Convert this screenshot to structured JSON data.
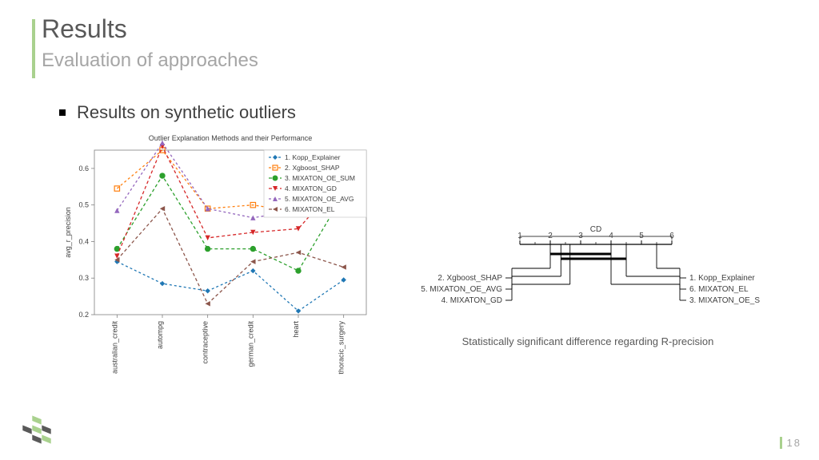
{
  "header": {
    "title": "Results",
    "subtitle": "Evaluation of approaches"
  },
  "bullet": "Results on synthetic outliers",
  "page_number": "18",
  "chart": {
    "type": "line",
    "title": "Outlier Explanation Methods and their Performance",
    "ylabel": "avg_r_precision",
    "x_categories": [
      "australian_credit",
      "autompg",
      "contraceptive",
      "german_credit",
      "heart",
      "thoracic_surgery"
    ],
    "ylim": [
      0.2,
      0.65
    ],
    "yticks": [
      0.2,
      0.3,
      0.4,
      0.5,
      0.6
    ],
    "background_color": "#ffffff",
    "axes_color": "#808080",
    "label_fontsize": 9,
    "title_fontsize": 9,
    "series": [
      {
        "name": "1. Kopp_Explainer",
        "color": "#1f77b4",
        "marker": "diamond",
        "dash": "3,3",
        "values": [
          0.345,
          0.285,
          0.265,
          0.32,
          0.21,
          0.295
        ]
      },
      {
        "name": "2. Xgboost_SHAP",
        "color": "#ff7f0e",
        "marker": "square",
        "dash": "3,3",
        "values": [
          0.545,
          0.65,
          0.49,
          0.5,
          0.48,
          0.52
        ]
      },
      {
        "name": "3. MIXATON_OE_SUM",
        "color": "#2ca02c",
        "marker": "circle",
        "dash": "4,3",
        "values": [
          0.38,
          0.58,
          0.38,
          0.38,
          0.32,
          0.53
        ]
      },
      {
        "name": "4. MIXATON_GD",
        "color": "#d62728",
        "marker": "triangle-down",
        "dash": "4,3",
        "values": [
          0.36,
          0.66,
          0.41,
          0.425,
          0.435,
          0.575
        ]
      },
      {
        "name": "5. MIXATON_OE_AVG",
        "color": "#9467bd",
        "marker": "triangle-up",
        "dash": "3,3",
        "values": [
          0.485,
          0.67,
          0.49,
          0.465,
          0.485,
          0.5
        ]
      },
      {
        "name": "6. MIXATON_EL",
        "color": "#8c564b",
        "marker": "triangle-left",
        "dash": "4,3",
        "values": [
          0.35,
          0.49,
          0.23,
          0.345,
          0.37,
          0.33
        ]
      }
    ]
  },
  "cd_diagram": {
    "type": "critical-difference",
    "label": "CD",
    "range": [
      1,
      6
    ],
    "ticks": [
      1,
      2,
      3,
      4,
      5,
      6
    ],
    "axis_color": "#000000",
    "left_entries": [
      {
        "name": "2. Xgboost_SHAP",
        "rank": 2.0
      },
      {
        "name": "5. MIXATON_OE_AVG",
        "rank": 2.35
      },
      {
        "name": "4. MIXATON_GD",
        "rank": 2.65
      }
    ],
    "right_entries": [
      {
        "name": "1. Kopp_Explainer",
        "rank": 5.5
      },
      {
        "name": "6. MIXATON_EL",
        "rank": 4.5
      },
      {
        "name": "3. MIXATON_OE_SUM",
        "rank": 4.0
      }
    ],
    "cd_bars": [
      {
        "from": 2.0,
        "to": 4.0,
        "y_offset": 12
      },
      {
        "from": 2.35,
        "to": 4.5,
        "y_offset": 18
      }
    ],
    "caption": "Statistically significant difference regarding R-precision"
  },
  "logo_colors": {
    "green": "#a9d18e",
    "gray": "#595959"
  }
}
